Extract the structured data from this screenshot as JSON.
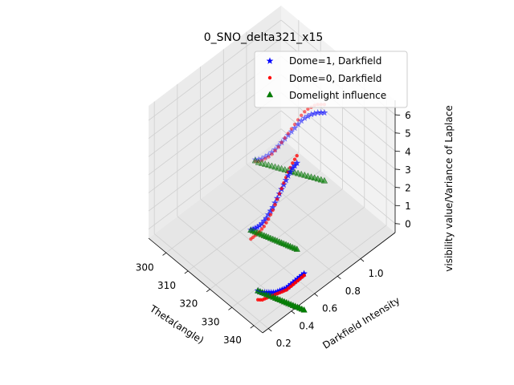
{
  "chart_data": {
    "type": "scatter",
    "title": "0_SNO_delta321_x15",
    "xlabel": "Theta(angle)",
    "ylabel": "Darkfield Intensity",
    "zlabel": "visibility value/Variance of Laplace",
    "xlim": [
      292,
      344
    ],
    "ylim": [
      0.15,
      1.3
    ],
    "zlim": [
      -0.5,
      6.8
    ],
    "xticks": [
      "300",
      "310",
      "320",
      "330",
      "340"
    ],
    "yticks": [
      "0.2",
      "0.4",
      "0.6",
      "0.8",
      "1.0"
    ],
    "zticks": [
      "0",
      "1",
      "2",
      "3",
      "4",
      "5",
      "6"
    ],
    "grid": true,
    "legend_position": "top-right",
    "series": [
      {
        "name": "Dome=1, Darkfield",
        "marker": "star",
        "color": "#0000ff",
        "groups": [
          {
            "y": 1.0,
            "x_start": 296,
            "x_step": 1.5,
            "z": [
              0.15,
              0.3,
              0.5,
              0.75,
              1.0,
              1.3,
              1.6,
              1.95,
              2.3,
              2.65,
              3.0,
              3.35,
              3.7,
              4.05,
              4.4,
              4.7,
              4.95,
              5.2,
              5.4,
              5.6,
              5.75,
              5.9
            ]
          },
          {
            "y": 0.6,
            "x_start": 315,
            "x_step": 1.0,
            "z": [
              0.1,
              0.25,
              0.4,
              0.55,
              0.75,
              0.95,
              1.2,
              1.45,
              1.75,
              2.05,
              2.35,
              2.7,
              3.05,
              3.4,
              3.75,
              4.1,
              4.45,
              4.8,
              5.1,
              5.4,
              5.65,
              5.9
            ]
          },
          {
            "y": 0.3,
            "x_start": 334,
            "x_step": 1.0,
            "z": [
              0.1,
              0.15,
              0.2,
              0.3,
              0.4,
              0.5,
              0.6,
              0.7,
              0.8,
              0.95,
              1.1,
              1.25,
              1.4,
              1.55,
              1.75,
              1.95,
              2.15,
              2.35,
              2.55,
              2.75,
              2.95,
              3.15
            ]
          }
        ]
      },
      {
        "name": "Dome=0, Darkfield",
        "marker": "circle",
        "color": "#ff0000",
        "groups": [
          {
            "y": 1.0,
            "x_start": 296,
            "x_step": 1.5,
            "z": [
              0.05,
              0.2,
              0.4,
              0.65,
              0.9,
              1.2,
              1.55,
              1.9,
              2.3,
              2.7,
              3.1,
              3.5,
              3.9,
              4.3,
              4.7,
              5.05,
              5.35,
              5.6,
              5.85,
              6.05,
              6.2,
              6.35
            ]
          },
          {
            "y": 0.6,
            "x_start": 315,
            "x_step": 1.0,
            "z": [
              -0.4,
              -0.2,
              0.0,
              0.2,
              0.4,
              0.65,
              0.9,
              1.2,
              1.5,
              1.85,
              2.2,
              2.6,
              3.0,
              3.4,
              3.8,
              4.2,
              4.6,
              5.0,
              5.35,
              5.7,
              6.0,
              6.3
            ]
          },
          {
            "y": 0.3,
            "x_start": 334,
            "x_step": 1.0,
            "z": [
              -0.4,
              -0.3,
              -0.2,
              -0.05,
              0.1,
              0.25,
              0.4,
              0.55,
              0.7,
              0.85,
              1.0,
              1.15,
              1.3,
              1.45,
              1.65,
              1.85,
              2.05,
              2.25,
              2.45,
              2.65,
              2.85,
              3.05
            ]
          }
        ]
      },
      {
        "name": "Domelight influence",
        "marker": "triangle",
        "color": "#008000",
        "groups": [
          {
            "y": 1.0,
            "x_start": 296,
            "x_step": 1.5,
            "z": [
              0.1,
              0.15,
              0.25,
              0.35,
              0.45,
              0.55,
              0.65,
              0.75,
              0.85,
              0.95,
              1.05,
              1.15,
              1.25,
              1.35,
              1.45,
              1.55,
              1.65,
              1.75,
              1.85,
              1.95,
              2.05,
              2.15
            ]
          },
          {
            "y": 0.6,
            "x_start": 315,
            "x_step": 1.0,
            "z": [
              0.1,
              0.15,
              0.2,
              0.25,
              0.3,
              0.35,
              0.4,
              0.45,
              0.5,
              0.55,
              0.6,
              0.65,
              0.7,
              0.75,
              0.8,
              0.85,
              0.9,
              0.95,
              1.0,
              1.05,
              1.1,
              1.15
            ]
          },
          {
            "y": 0.3,
            "x_start": 334,
            "x_step": 1.0,
            "z": [
              0.1,
              0.15,
              0.2,
              0.25,
              0.3,
              0.35,
              0.4,
              0.45,
              0.5,
              0.55,
              0.6,
              0.65,
              0.7,
              0.75,
              0.8,
              0.85,
              0.9,
              0.95,
              1.0,
              1.05,
              1.1,
              1.15
            ]
          }
        ]
      }
    ]
  }
}
